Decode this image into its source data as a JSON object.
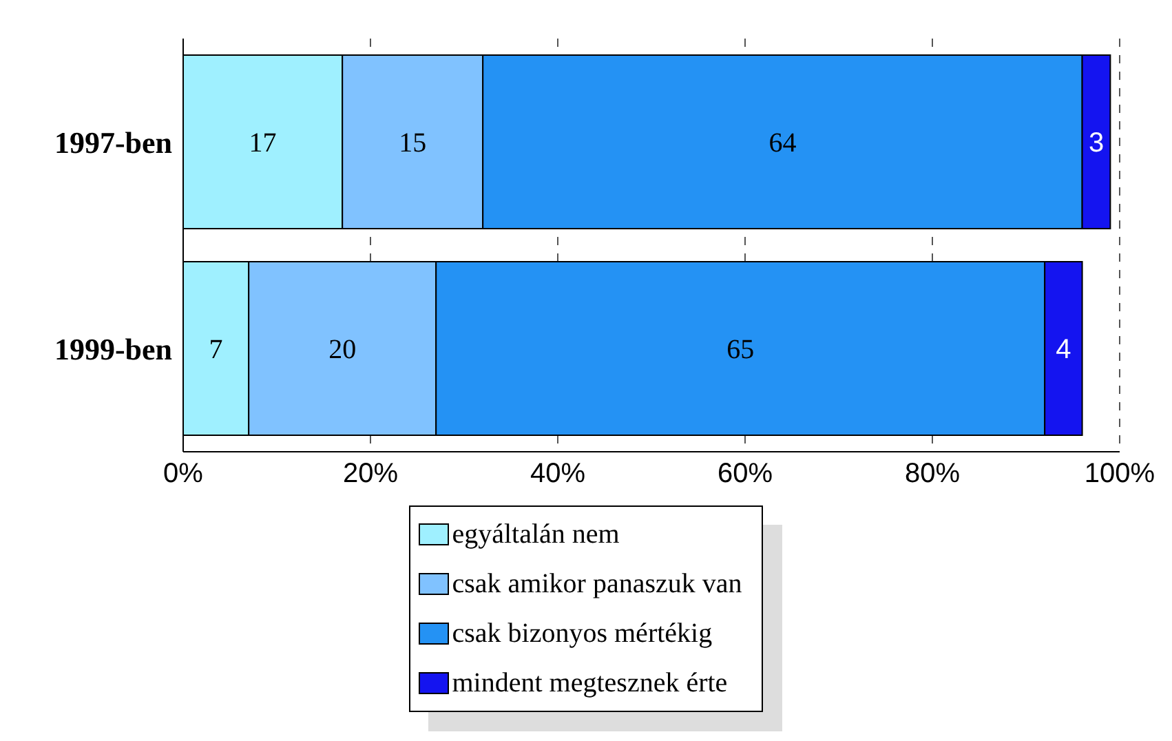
{
  "chart_data": {
    "type": "bar",
    "orientation": "horizontal",
    "stacked": true,
    "categories": [
      "1997-ben",
      "1999-ben"
    ],
    "series": [
      {
        "name": "egyáltalán nem",
        "color": "#9ff0ff",
        "values": [
          17,
          7
        ]
      },
      {
        "name": "csak amikor panaszuk van",
        "color": "#80c2ff",
        "values": [
          15,
          20
        ]
      },
      {
        "name": "csak bizonyos mértékig",
        "color": "#2492f4",
        "values": [
          64,
          65
        ]
      },
      {
        "name": "mindent megtesznek érte",
        "color": "#1414f0",
        "values": [
          3,
          4
        ]
      }
    ],
    "xlim": [
      0,
      100
    ],
    "xticks": [
      {
        "value": 0,
        "label": "0%"
      },
      {
        "value": 20,
        "label": "20%"
      },
      {
        "value": 40,
        "label": "40%"
      },
      {
        "value": 60,
        "label": "60%"
      },
      {
        "value": 80,
        "label": "80%"
      },
      {
        "value": 100,
        "label": "100%"
      }
    ],
    "grid": "x",
    "legend": "bottom",
    "data_labels": true
  }
}
